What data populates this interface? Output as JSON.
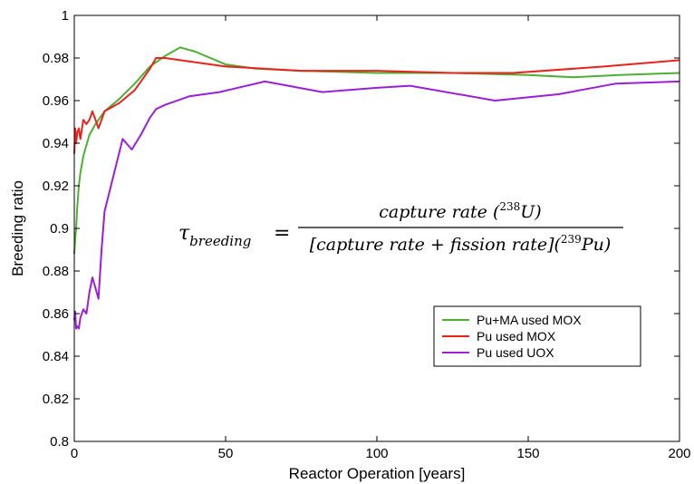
{
  "chart_data": {
    "type": "line",
    "title": "",
    "xlabel": "Reactor Operation [years]",
    "ylabel": "Breeding ratio",
    "xlim": [
      0,
      200
    ],
    "ylim": [
      0.8,
      1.0
    ],
    "xticks": [
      0,
      50,
      100,
      150,
      200
    ],
    "yticks": [
      0.8,
      0.82,
      0.84,
      0.86,
      0.88,
      0.9,
      0.92,
      0.94,
      0.96,
      0.98,
      1
    ],
    "ytick_labels": [
      "0.8",
      "0.82",
      "0.84",
      "0.86",
      "0.88",
      "0.9",
      "0.92",
      "0.94",
      "0.96",
      "0.98",
      "1"
    ],
    "grid": false,
    "legend_position": "right",
    "equation": {
      "lhs": "τ",
      "lhs_sub": "breeding",
      "equals": "=",
      "numerator": "capture rate (",
      "num_sup": "238",
      "num_elem": "U)",
      "denominator": "[capture rate + fission rate](",
      "den_sup": "239",
      "den_elem": "Pu)"
    },
    "series": [
      {
        "name": "Pu+MA used MOX",
        "color": "#4cb034",
        "x": [
          0,
          0.3,
          0.6,
          1,
          1.5,
          2,
          3,
          5,
          7,
          10,
          15,
          20,
          25,
          30,
          35,
          40,
          50,
          60,
          75,
          100,
          125,
          150,
          165,
          180,
          200
        ],
        "y": [
          0.888,
          0.895,
          0.9,
          0.91,
          0.92,
          0.926,
          0.934,
          0.944,
          0.949,
          0.955,
          0.961,
          0.968,
          0.976,
          0.981,
          0.985,
          0.983,
          0.977,
          0.975,
          0.974,
          0.973,
          0.973,
          0.972,
          0.971,
          0.972,
          0.973
        ]
      },
      {
        "name": "Pu used MOX",
        "color": "#e8231c",
        "x": [
          0,
          0.3,
          0.6,
          1,
          1.5,
          2,
          3,
          4,
          5,
          6,
          7,
          8,
          10,
          15,
          20,
          25,
          27,
          30,
          35,
          50,
          75,
          100,
          125,
          145,
          175,
          200
        ],
        "y": [
          0.935,
          0.947,
          0.94,
          0.945,
          0.947,
          0.942,
          0.951,
          0.949,
          0.951,
          0.955,
          0.951,
          0.947,
          0.955,
          0.959,
          0.965,
          0.975,
          0.98,
          0.98,
          0.979,
          0.976,
          0.974,
          0.974,
          0.973,
          0.973,
          0.976,
          0.979
        ]
      },
      {
        "name": "Pu used UOX",
        "color": "#9b1fd6",
        "x": [
          0,
          0.3,
          0.6,
          1,
          1.5,
          2,
          3,
          4,
          5,
          6,
          7,
          8,
          9,
          10,
          13,
          16,
          19,
          22,
          25,
          27,
          30,
          38,
          48,
          63,
          82,
          100,
          111,
          139,
          160,
          179,
          200
        ],
        "y": [
          0.857,
          0.861,
          0.853,
          0.854,
          0.853,
          0.858,
          0.862,
          0.86,
          0.87,
          0.877,
          0.872,
          0.867,
          0.89,
          0.908,
          0.925,
          0.942,
          0.937,
          0.944,
          0.952,
          0.956,
          0.958,
          0.962,
          0.964,
          0.969,
          0.964,
          0.966,
          0.967,
          0.96,
          0.963,
          0.968,
          0.969
        ]
      }
    ]
  }
}
